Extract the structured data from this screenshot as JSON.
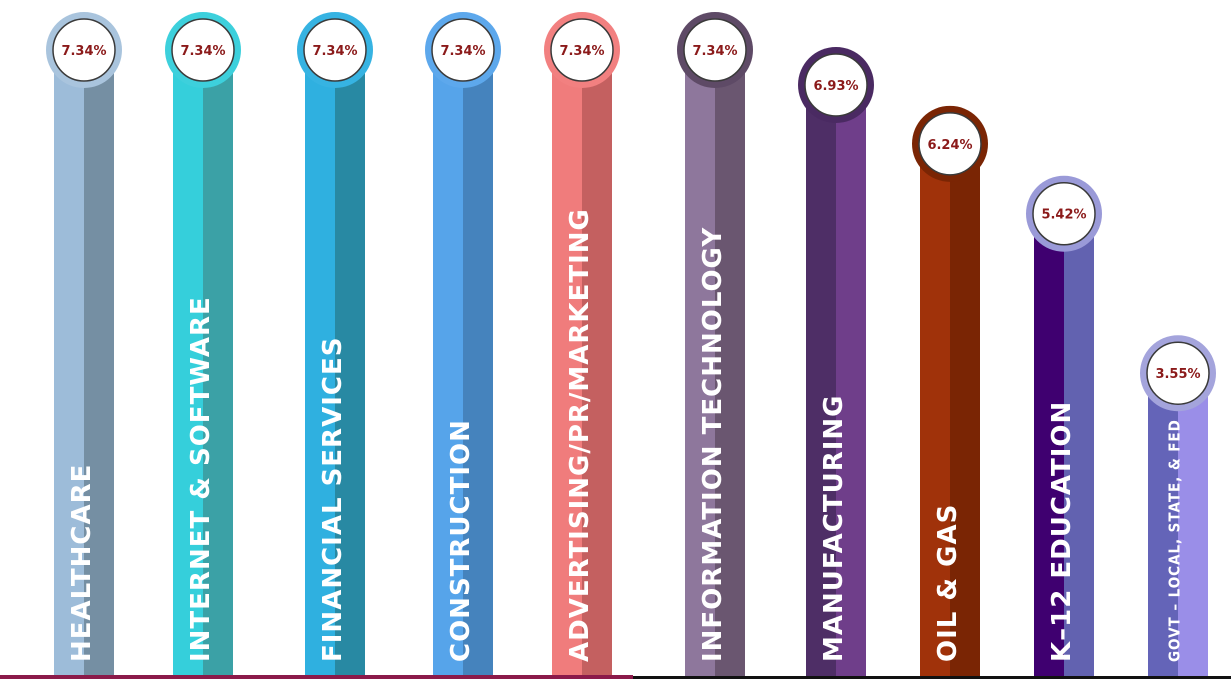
{
  "chart_data": {
    "type": "bar",
    "title": "",
    "xlabel": "",
    "ylabel": "",
    "categories": [
      "HEALTHCARE",
      "INTERNET & SOFTWARE",
      "FINANCIAL SERVICES",
      "CONSTRUCTION",
      "ADVERTISING/PR/MARKETING",
      "INFORMATION TECHNOLOGY",
      "MANUFACTURING",
      "OIL & GAS",
      "K–12 EDUCATION",
      "GOVT – LOCAL, STATE, & FED"
    ],
    "values": [
      7.34,
      7.34,
      7.34,
      7.34,
      7.34,
      7.34,
      6.93,
      6.24,
      5.42,
      3.55
    ],
    "value_labels": [
      "7.34%",
      "7.34%",
      "7.34%",
      "7.34%",
      "7.34%",
      "7.34%",
      "6.93%",
      "6.24%",
      "5.42%",
      "3.55%"
    ],
    "colors": [
      {
        "left": "#9dbcd9",
        "right": "#758fa3",
        "ring": "#a9c4dd"
      },
      {
        "left": "#35cfdb",
        "right": "#3ba1a6",
        "ring": "#3dd0dc"
      },
      {
        "left": "#2fb0e0",
        "right": "#2889a3",
        "ring": "#36b3e2"
      },
      {
        "left": "#56a4ea",
        "right": "#4583bd",
        "ring": "#5da8ec"
      },
      {
        "left": "#f07c7c",
        "right": "#c46060",
        "ring": "#f28080"
      },
      {
        "left": "#8e779c",
        "right": "#6a5670",
        "ring": "#5e4a66"
      },
      {
        "left": "#4e2e66",
        "right": "#6f3e8a",
        "ring": "#4a2a62"
      },
      {
        "left": "#a0320a",
        "right": "#7a2504",
        "ring": "#7a2504"
      },
      {
        "left": "#3f0070",
        "right": "#6262b0",
        "ring": "#9a9ad8"
      },
      {
        "left": "#6464b8",
        "right": "#9a8ee8",
        "ring": "#a4a4dc"
      }
    ],
    "ylim": [
      0,
      7.34
    ],
    "grid": false,
    "legend": "none"
  }
}
